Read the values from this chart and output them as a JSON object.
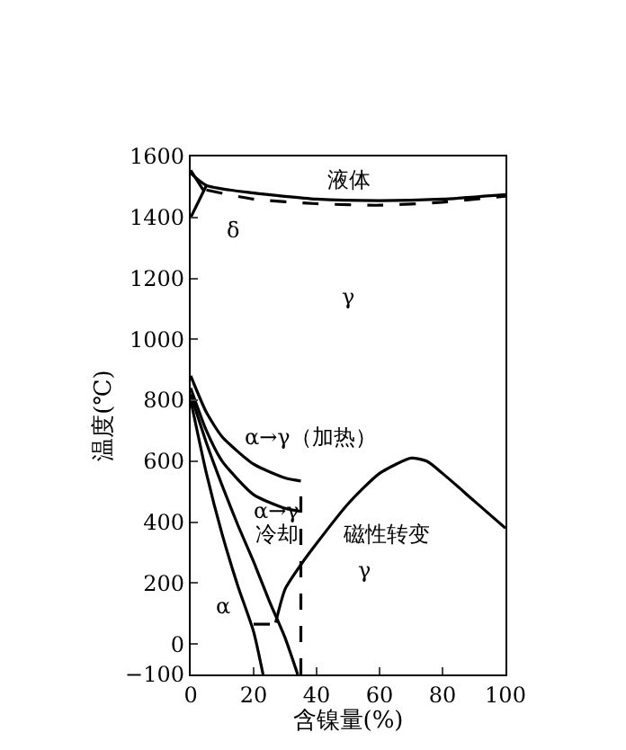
{
  "chart_data": {
    "type": "line",
    "xlabel": "含镍量(%)",
    "ylabel": "温度(℃)",
    "xlim": [
      0,
      100
    ],
    "xticks": [
      0,
      20,
      40,
      60,
      80,
      100
    ],
    "ylim": [
      -100,
      1600
    ],
    "yticks": [
      -100,
      0,
      200,
      400,
      600,
      800,
      1000,
      1200,
      1400,
      1600
    ],
    "marker": "none",
    "series": [
      {
        "color": "#000000",
        "x": [
          0,
          5,
          20,
          40,
          60,
          80,
          100
        ],
        "values": [
          1545,
          1505,
          1480,
          1460,
          1455,
          1460,
          1475
        ]
      },
      {
        "color": "#000000",
        "line_style": "dashed",
        "x": [
          5,
          20,
          40,
          60,
          80,
          100
        ],
        "values": [
          1490,
          1460,
          1445,
          1440,
          1450,
          1470
        ]
      },
      {
        "color": "#000000",
        "x": [
          0,
          5
        ],
        "values": [
          1400,
          1505
        ]
      },
      {
        "color": "#000000",
        "x": [
          0,
          4
        ],
        "values": [
          1555,
          1490
        ]
      },
      {
        "color": "#000000",
        "x": [
          0,
          5,
          10,
          20,
          30,
          35
        ],
        "values": [
          880,
          760,
          680,
          590,
          545,
          535
        ]
      },
      {
        "color": "#000000",
        "x": [
          0,
          5,
          10,
          20,
          30,
          35
        ],
        "values": [
          840,
          700,
          600,
          490,
          445,
          435
        ]
      },
      {
        "color": "#000000",
        "x": [
          0,
          5,
          10,
          15,
          20,
          25,
          30,
          34
        ],
        "values": [
          820,
          660,
          520,
          390,
          270,
          140,
          20,
          -100
        ]
      },
      {
        "color": "#000000",
        "x": [
          0,
          5,
          10,
          15,
          20,
          23
        ],
        "values": [
          800,
          560,
          360,
          190,
          40,
          -100
        ]
      },
      {
        "color": "#000000",
        "x": [
          27,
          30,
          35,
          40,
          50,
          60,
          70,
          75,
          80,
          90,
          100
        ],
        "values": [
          70,
          180,
          260,
          330,
          460,
          560,
          610,
          600,
          560,
          470,
          380
        ]
      },
      {
        "color": "#000000",
        "line_style": "dashed",
        "x": [
          35,
          35
        ],
        "values": [
          -100,
          535
        ]
      },
      {
        "color": "#000000",
        "line_style": "dashed",
        "x": [
          20,
          27
        ],
        "values": [
          65,
          65
        ]
      }
    ],
    "annotations": [
      "液体",
      "δ",
      "γ",
      "α→γ（加热）",
      "α→γ",
      "冷却",
      "磁性转变",
      "γ",
      "α"
    ]
  }
}
